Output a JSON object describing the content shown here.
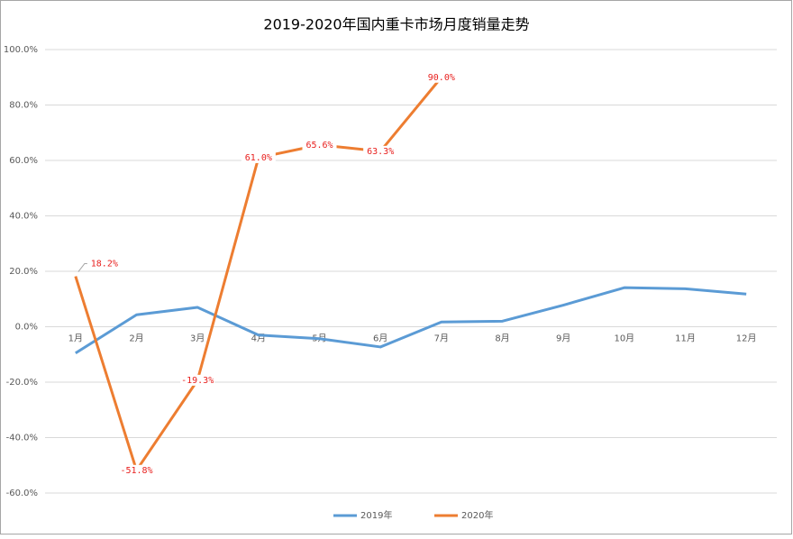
{
  "chart_data": {
    "type": "line",
    "title": "2019-2020年国内重卡市场月度销量走势",
    "categories": [
      "1月",
      "2月",
      "3月",
      "4月",
      "5月",
      "6月",
      "7月",
      "8月",
      "9月",
      "10月",
      "11月",
      "12月"
    ],
    "series": [
      {
        "name": "2019年",
        "color": "#5b9bd5",
        "values": [
          -9.5,
          4.3,
          7.0,
          -3.0,
          -4.3,
          -7.3,
          1.7,
          2.0,
          7.8,
          14.1,
          13.7,
          11.8
        ]
      },
      {
        "name": "2020年",
        "color": "#ed7d31",
        "values": [
          18.2,
          -51.8,
          -19.3,
          61.0,
          65.6,
          63.3,
          90.0,
          null,
          null,
          null,
          null,
          null
        ],
        "value_labels": [
          "18.2%",
          "-51.8%",
          "-19.3%",
          "61.0%",
          "65.6%",
          "63.3%",
          "90.0%",
          null,
          null,
          null,
          null,
          null
        ]
      }
    ],
    "ylim": [
      -60,
      100
    ],
    "yticks": [
      {
        "value": -60,
        "label": "-60.0%"
      },
      {
        "value": -40,
        "label": "-40.0%"
      },
      {
        "value": -20,
        "label": "-20.0%"
      },
      {
        "value": 0,
        "label": "0.0%"
      },
      {
        "value": 20,
        "label": "20.0%"
      },
      {
        "value": 40,
        "label": "40.0%"
      },
      {
        "value": 60,
        "label": "60.0%"
      },
      {
        "value": 80,
        "label": "80.0%"
      },
      {
        "value": 100,
        "label": "100.0%"
      }
    ],
    "grid": true,
    "legend": "bottom"
  }
}
